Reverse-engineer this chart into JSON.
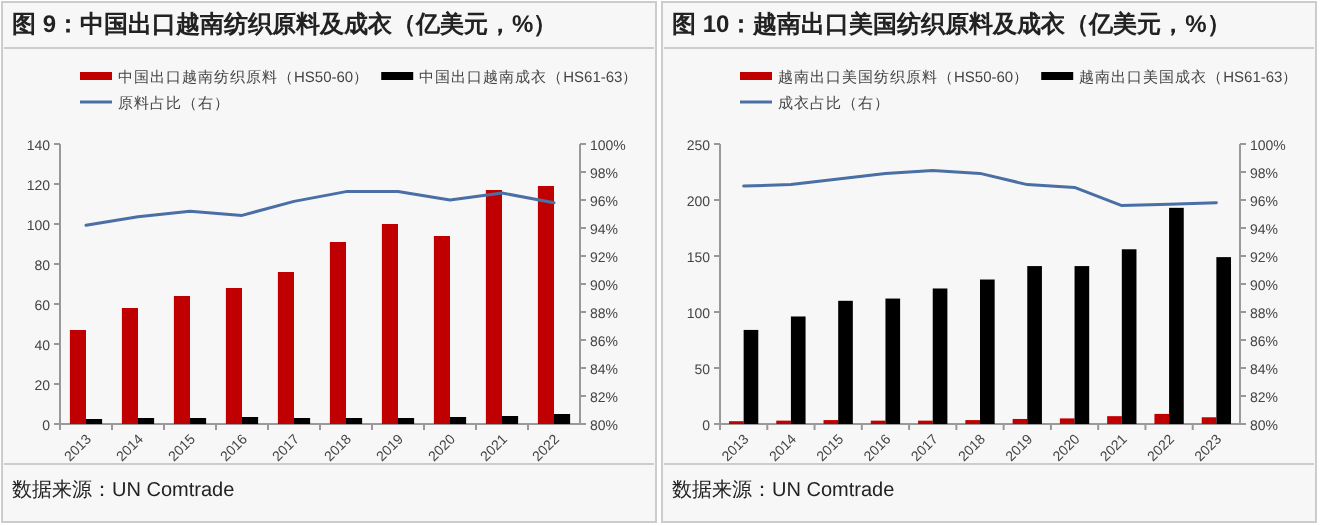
{
  "chart_data": [
    {
      "type": "bar",
      "title": "图 9：中国出口越南纺织原料及成衣（亿美元，%）",
      "categories": [
        "2013",
        "2014",
        "2015",
        "2016",
        "2017",
        "2018",
        "2019",
        "2020",
        "2021",
        "2022"
      ],
      "series": [
        {
          "name": "中国出口越南纺织原料（HS50-60）",
          "color": "#c00000",
          "values": [
            47,
            58,
            64,
            68,
            76,
            91,
            100,
            94,
            117,
            119
          ]
        },
        {
          "name": "中国出口越南成衣（HS61-63）",
          "color": "#000000",
          "values": [
            2.5,
            3,
            3,
            3.5,
            3,
            3,
            3,
            3.5,
            4,
            5
          ]
        },
        {
          "name": "原料占比（右）",
          "type": "line",
          "axis": "y2",
          "color": "#4a6fa5",
          "values": [
            94.2,
            94.8,
            95.2,
            94.9,
            95.9,
            96.6,
            96.6,
            96.0,
            96.5,
            95.8
          ]
        }
      ],
      "ylim": [
        0,
        140
      ],
      "yticks": [
        0,
        20,
        40,
        60,
        80,
        100,
        120,
        140
      ],
      "y2lim": [
        80,
        100
      ],
      "y2ticks": [
        {
          "value": 80,
          "label": "80%"
        },
        {
          "value": 82,
          "label": "82%"
        },
        {
          "value": 84,
          "label": "84%"
        },
        {
          "value": 86,
          "label": "86%"
        },
        {
          "value": 88,
          "label": "88%"
        },
        {
          "value": 90,
          "label": "90%"
        },
        {
          "value": 92,
          "label": "92%"
        },
        {
          "value": 94,
          "label": "94%"
        },
        {
          "value": 96,
          "label": "96%"
        },
        {
          "value": 98,
          "label": "98%"
        },
        {
          "value": 100,
          "label": "100%"
        }
      ],
      "legend": "top",
      "grid": false,
      "annotations": [
        "数据来源：UN Comtrade"
      ]
    },
    {
      "type": "bar",
      "title": "图 10：越南出口美国纺织原料及成衣（亿美元，%）",
      "categories": [
        "2013",
        "2014",
        "2015",
        "2016",
        "2017",
        "2018",
        "2019",
        "2020",
        "2021",
        "2022",
        "2023"
      ],
      "series": [
        {
          "name": "越南出口美国纺织原料（HS50-60）",
          "color": "#c00000",
          "values": [
            2.5,
            3,
            3.5,
            3,
            3,
            3.5,
            4.5,
            5,
            7,
            9,
            6
          ]
        },
        {
          "name": "越南出口美国成衣（HS61-63）",
          "color": "#000000",
          "values": [
            84,
            96,
            110,
            112,
            121,
            129,
            141,
            141,
            156,
            193,
            149
          ]
        },
        {
          "name": "成衣占比（右）",
          "type": "line",
          "axis": "y2",
          "color": "#4a6fa5",
          "values": [
            97.0,
            97.1,
            97.5,
            97.9,
            98.1,
            97.9,
            97.1,
            96.9,
            95.6,
            95.7,
            95.8
          ]
        }
      ],
      "ylim": [
        0,
        250
      ],
      "yticks": [
        0,
        50,
        100,
        150,
        200,
        250
      ],
      "y2lim": [
        80,
        100
      ],
      "y2ticks": [
        {
          "value": 80,
          "label": "80%"
        },
        {
          "value": 82,
          "label": "82%"
        },
        {
          "value": 84,
          "label": "84%"
        },
        {
          "value": 86,
          "label": "86%"
        },
        {
          "value": 88,
          "label": "88%"
        },
        {
          "value": 90,
          "label": "90%"
        },
        {
          "value": 92,
          "label": "92%"
        },
        {
          "value": 94,
          "label": "94%"
        },
        {
          "value": 96,
          "label": "96%"
        },
        {
          "value": 98,
          "label": "98%"
        },
        {
          "value": 100,
          "label": "100%"
        }
      ],
      "legend": "top",
      "grid": false,
      "annotations": [
        "数据来源：UN Comtrade"
      ]
    }
  ]
}
